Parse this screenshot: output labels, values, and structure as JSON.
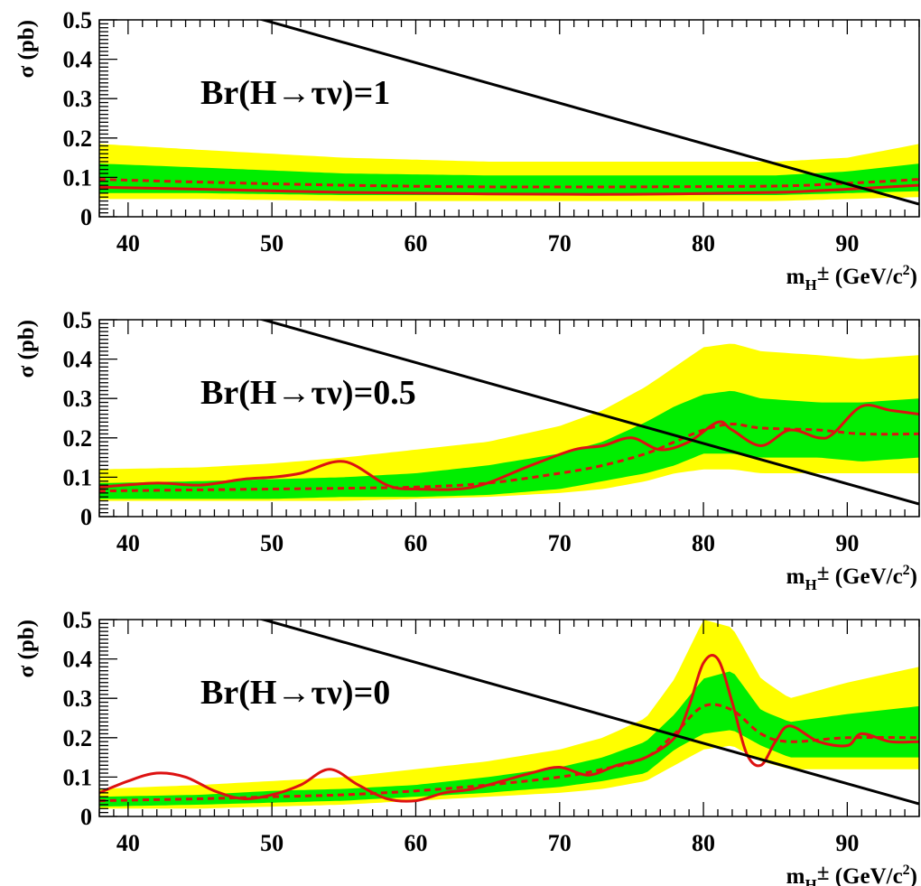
{
  "chart_data": [
    {
      "type": "line",
      "annotation": "Br(H→τν)=1",
      "xlabel": {
        "main": "m",
        "sub": "H",
        "sup_pm": "±",
        "unit_open": " (GeV/c",
        "unit_sup": "2",
        "unit_close": ")"
      },
      "ylabel": "σ (pb)",
      "xlim": [
        38,
        95
      ],
      "ylim": [
        0,
        0.5
      ],
      "xticks": [
        40,
        50,
        60,
        70,
        80,
        90
      ],
      "yticks": [
        0,
        0.1,
        0.2,
        0.3,
        0.4,
        0.5
      ],
      "xtick_labels": [
        "40",
        "50",
        "60",
        "70",
        "80",
        "90"
      ],
      "ytick_labels": [
        "0",
        "0.1",
        "0.2",
        "0.3",
        "0.4",
        "0.5"
      ],
      "grid": false,
      "colors": {
        "band_2sigma": "#ffff00",
        "band_1sigma": "#00ee00",
        "observed": "#dd1111",
        "expected": "#dd1111",
        "theory": "#000000"
      },
      "series": [
        {
          "role": "band_2sigma",
          "x": [
            38,
            45,
            55,
            65,
            75,
            85,
            90,
            95
          ],
          "lower": [
            0.045,
            0.045,
            0.04,
            0.04,
            0.04,
            0.04,
            0.045,
            0.05
          ],
          "upper": [
            0.185,
            0.17,
            0.15,
            0.14,
            0.14,
            0.14,
            0.15,
            0.185
          ]
        },
        {
          "role": "band_1sigma",
          "x": [
            38,
            45,
            55,
            65,
            75,
            85,
            90,
            95
          ],
          "lower": [
            0.06,
            0.06,
            0.055,
            0.055,
            0.055,
            0.055,
            0.06,
            0.065
          ],
          "upper": [
            0.135,
            0.125,
            0.11,
            0.105,
            0.105,
            0.105,
            0.115,
            0.135
          ]
        },
        {
          "role": "expected",
          "x": [
            38,
            45,
            55,
            65,
            75,
            85,
            90,
            95
          ],
          "y": [
            0.095,
            0.088,
            0.08,
            0.076,
            0.076,
            0.078,
            0.085,
            0.095
          ]
        },
        {
          "role": "observed",
          "x": [
            38,
            45,
            55,
            65,
            75,
            85,
            90,
            95
          ],
          "y": [
            0.075,
            0.07,
            0.062,
            0.058,
            0.057,
            0.062,
            0.07,
            0.08
          ]
        },
        {
          "role": "theory",
          "x": [
            38,
            95
          ],
          "y": [
            0.617,
            0.032
          ]
        }
      ]
    },
    {
      "type": "line",
      "annotation": "Br(H→τν)=0.5",
      "xlabel": {
        "main": "m",
        "sub": "H",
        "sup_pm": "±",
        "unit_open": " (GeV/c",
        "unit_sup": "2",
        "unit_close": ")"
      },
      "ylabel": "σ (pb)",
      "xlim": [
        38,
        95
      ],
      "ylim": [
        0,
        0.5
      ],
      "xticks": [
        40,
        50,
        60,
        70,
        80,
        90
      ],
      "yticks": [
        0,
        0.1,
        0.2,
        0.3,
        0.4,
        0.5
      ],
      "xtick_labels": [
        "40",
        "50",
        "60",
        "70",
        "80",
        "90"
      ],
      "ytick_labels": [
        "0",
        "0.1",
        "0.2",
        "0.3",
        "0.4",
        "0.5"
      ],
      "grid": false,
      "colors": {
        "band_2sigma": "#ffff00",
        "band_1sigma": "#00ee00",
        "observed": "#dd1111",
        "expected": "#dd1111",
        "theory": "#000000"
      },
      "series": [
        {
          "role": "band_2sigma",
          "x": [
            38,
            45,
            50,
            55,
            60,
            65,
            70,
            73,
            76,
            78,
            80,
            82,
            84,
            88,
            91,
            95
          ],
          "lower": [
            0.04,
            0.04,
            0.04,
            0.04,
            0.045,
            0.05,
            0.06,
            0.07,
            0.09,
            0.11,
            0.12,
            0.12,
            0.11,
            0.11,
            0.11,
            0.11
          ],
          "upper": [
            0.12,
            0.125,
            0.135,
            0.15,
            0.17,
            0.19,
            0.23,
            0.27,
            0.33,
            0.38,
            0.43,
            0.44,
            0.42,
            0.41,
            0.4,
            0.41
          ]
        },
        {
          "role": "band_1sigma",
          "x": [
            38,
            45,
            50,
            55,
            60,
            65,
            70,
            73,
            76,
            78,
            80,
            82,
            84,
            88,
            91,
            95
          ],
          "lower": [
            0.045,
            0.045,
            0.045,
            0.05,
            0.05,
            0.055,
            0.07,
            0.09,
            0.11,
            0.13,
            0.16,
            0.16,
            0.15,
            0.15,
            0.14,
            0.15
          ],
          "upper": [
            0.085,
            0.09,
            0.095,
            0.1,
            0.11,
            0.13,
            0.16,
            0.19,
            0.24,
            0.28,
            0.31,
            0.32,
            0.3,
            0.29,
            0.29,
            0.3
          ]
        },
        {
          "role": "expected",
          "x": [
            38,
            45,
            50,
            55,
            60,
            65,
            70,
            73,
            76,
            78,
            80,
            82,
            84,
            88,
            91,
            95
          ],
          "y": [
            0.065,
            0.068,
            0.07,
            0.072,
            0.075,
            0.085,
            0.11,
            0.13,
            0.16,
            0.19,
            0.22,
            0.235,
            0.225,
            0.22,
            0.21,
            0.21
          ]
        },
        {
          "role": "observed",
          "x": [
            38,
            42,
            45,
            48,
            50,
            52,
            55,
            58,
            60,
            64,
            68,
            71,
            73,
            75,
            77,
            79,
            81,
            82,
            84,
            86,
            88,
            89,
            91,
            93,
            95
          ],
          "y": [
            0.075,
            0.085,
            0.08,
            0.095,
            0.1,
            0.11,
            0.14,
            0.08,
            0.07,
            0.075,
            0.13,
            0.17,
            0.18,
            0.2,
            0.17,
            0.19,
            0.24,
            0.22,
            0.18,
            0.22,
            0.2,
            0.21,
            0.28,
            0.27,
            0.26
          ]
        },
        {
          "role": "theory",
          "x": [
            38,
            95
          ],
          "y": [
            0.617,
            0.032
          ]
        }
      ]
    },
    {
      "type": "line",
      "annotation": "Br(H→τν)=0",
      "xlabel": {
        "main": "m",
        "sub": "H",
        "sup_pm": "±",
        "unit_open": " (GeV/c",
        "unit_sup": "2",
        "unit_close": ")"
      },
      "ylabel": "σ (pb)",
      "xlim": [
        38,
        95
      ],
      "ylim": [
        0,
        0.5
      ],
      "xticks": [
        40,
        50,
        60,
        70,
        80,
        90
      ],
      "yticks": [
        0,
        0.1,
        0.2,
        0.3,
        0.4,
        0.5
      ],
      "xtick_labels": [
        "40",
        "50",
        "60",
        "70",
        "80",
        "90"
      ],
      "ytick_labels": [
        "0",
        "0.1",
        "0.2",
        "0.3",
        "0.4",
        "0.5"
      ],
      "grid": false,
      "colors": {
        "band_2sigma": "#ffff00",
        "band_1sigma": "#00ee00",
        "observed": "#dd1111",
        "expected": "#dd1111",
        "theory": "#000000"
      },
      "series": [
        {
          "role": "band_2sigma",
          "x": [
            38,
            45,
            50,
            55,
            60,
            65,
            70,
            73,
            76,
            78,
            80,
            82,
            84,
            86,
            90,
            95
          ],
          "lower": [
            0.02,
            0.02,
            0.025,
            0.03,
            0.04,
            0.05,
            0.06,
            0.07,
            0.09,
            0.13,
            0.17,
            0.18,
            0.14,
            0.12,
            0.12,
            0.12
          ],
          "upper": [
            0.07,
            0.08,
            0.09,
            0.1,
            0.12,
            0.14,
            0.17,
            0.2,
            0.25,
            0.35,
            0.5,
            0.48,
            0.35,
            0.3,
            0.34,
            0.38
          ]
        },
        {
          "role": "band_1sigma",
          "x": [
            38,
            45,
            50,
            55,
            60,
            65,
            70,
            73,
            76,
            78,
            80,
            82,
            84,
            86,
            90,
            95
          ],
          "lower": [
            0.025,
            0.03,
            0.035,
            0.04,
            0.05,
            0.06,
            0.075,
            0.09,
            0.11,
            0.17,
            0.21,
            0.22,
            0.18,
            0.15,
            0.15,
            0.15
          ],
          "upper": [
            0.05,
            0.055,
            0.065,
            0.07,
            0.08,
            0.1,
            0.125,
            0.15,
            0.19,
            0.26,
            0.35,
            0.37,
            0.27,
            0.24,
            0.26,
            0.28
          ]
        },
        {
          "role": "expected",
          "x": [
            38,
            45,
            50,
            55,
            60,
            65,
            70,
            73,
            76,
            78,
            80,
            82,
            84,
            86,
            90,
            95
          ],
          "y": [
            0.04,
            0.045,
            0.05,
            0.055,
            0.065,
            0.08,
            0.1,
            0.12,
            0.15,
            0.21,
            0.28,
            0.27,
            0.21,
            0.19,
            0.2,
            0.2
          ]
        },
        {
          "role": "observed",
          "x": [
            38,
            40,
            42,
            44,
            46,
            48,
            50,
            52,
            54,
            56,
            58,
            60,
            62,
            64,
            66,
            68,
            70,
            72,
            74,
            76,
            78,
            79,
            80,
            81,
            82,
            83,
            84,
            85,
            86,
            88,
            90,
            91,
            93,
            95
          ],
          "y": [
            0.06,
            0.09,
            0.11,
            0.1,
            0.065,
            0.045,
            0.055,
            0.08,
            0.12,
            0.08,
            0.045,
            0.04,
            0.06,
            0.07,
            0.09,
            0.11,
            0.125,
            0.105,
            0.13,
            0.15,
            0.2,
            0.28,
            0.39,
            0.4,
            0.29,
            0.16,
            0.13,
            0.19,
            0.23,
            0.19,
            0.18,
            0.21,
            0.19,
            0.19
          ]
        },
        {
          "role": "theory",
          "x": [
            38,
            95
          ],
          "y": [
            0.617,
            0.032
          ]
        }
      ]
    }
  ]
}
